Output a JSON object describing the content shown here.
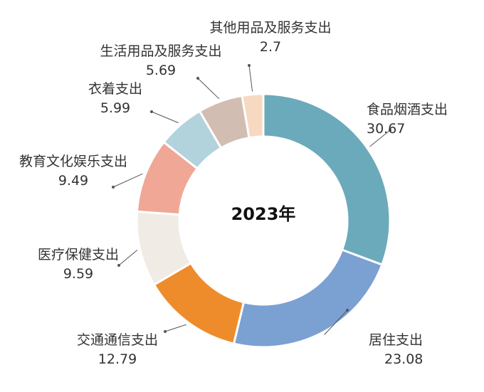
{
  "chart_data": {
    "type": "pie",
    "donut": true,
    "center_label": "2023年",
    "slices": [
      {
        "label": "食品烟酒支出",
        "value": 30.67,
        "value_text": "30.67",
        "color": "#6aaabb"
      },
      {
        "label": "居住支出",
        "value": 23.08,
        "value_text": "23.08",
        "color": "#7ba0d2"
      },
      {
        "label": "交通通信支出",
        "value": 12.79,
        "value_text": "12.79",
        "color": "#ee8c2c"
      },
      {
        "label": "医疗保健支出",
        "value": 9.59,
        "value_text": "9.59",
        "color": "#f0ebe5"
      },
      {
        "label": "教育文化娱乐支出",
        "value": 9.49,
        "value_text": "9.49",
        "color": "#f0a796"
      },
      {
        "label": "衣着支出",
        "value": 5.99,
        "value_text": "5.99",
        "color": "#b2d2dc"
      },
      {
        "label": "生活用品及服务支出",
        "value": 5.69,
        "value_text": "5.69",
        "color": "#d2bdb2"
      },
      {
        "label": "其他用品及服务支出",
        "value": 2.7,
        "value_text": "2.7",
        "color": "#f7d9c2"
      }
    ]
  }
}
